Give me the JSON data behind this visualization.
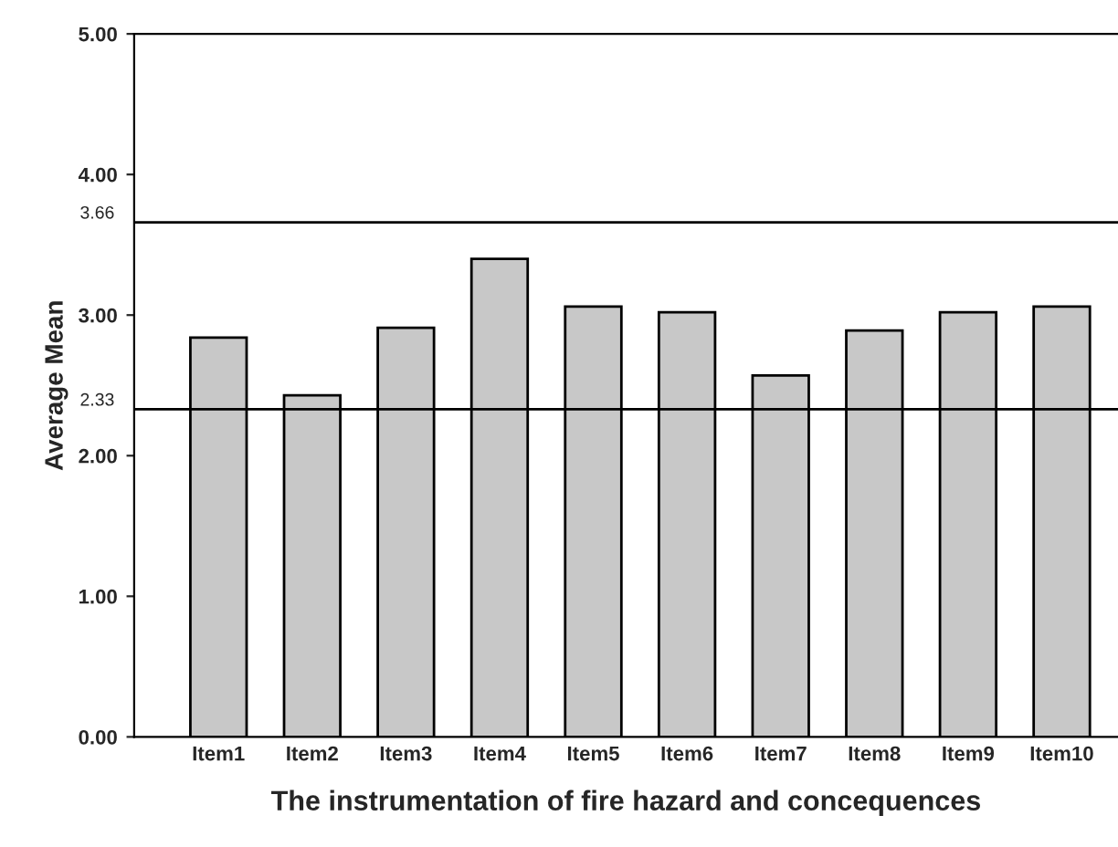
{
  "chart_data": {
    "type": "bar",
    "xlabel": "The instrumentation of fire hazard and concequences",
    "ylabel": "Average Mean",
    "categories": [
      "Item1",
      "Item2",
      "Item3",
      "Item4",
      "Item5",
      "Item6",
      "Item7",
      "Item8",
      "Item9",
      "Item10"
    ],
    "values": [
      2.84,
      2.43,
      2.91,
      3.4,
      3.06,
      3.02,
      2.57,
      2.89,
      3.02,
      3.06
    ],
    "color": "#c8c8c8",
    "ylim": [
      0,
      5
    ],
    "yticks": [
      {
        "value": 0,
        "label": "0.00"
      },
      {
        "value": 1,
        "label": "1.00"
      },
      {
        "value": 2,
        "label": "2.00"
      },
      {
        "value": 3,
        "label": "3.00"
      },
      {
        "value": 4,
        "label": "4.00"
      },
      {
        "value": 5,
        "label": "5.00"
      }
    ],
    "ref_lines": [
      {
        "axis": "y",
        "value": 3.66,
        "label": "3.66",
        "color": "#000000"
      },
      {
        "axis": "y",
        "value": 2.33,
        "label": "2.33",
        "color": "#000000"
      }
    ],
    "grid": false,
    "legend": false
  }
}
